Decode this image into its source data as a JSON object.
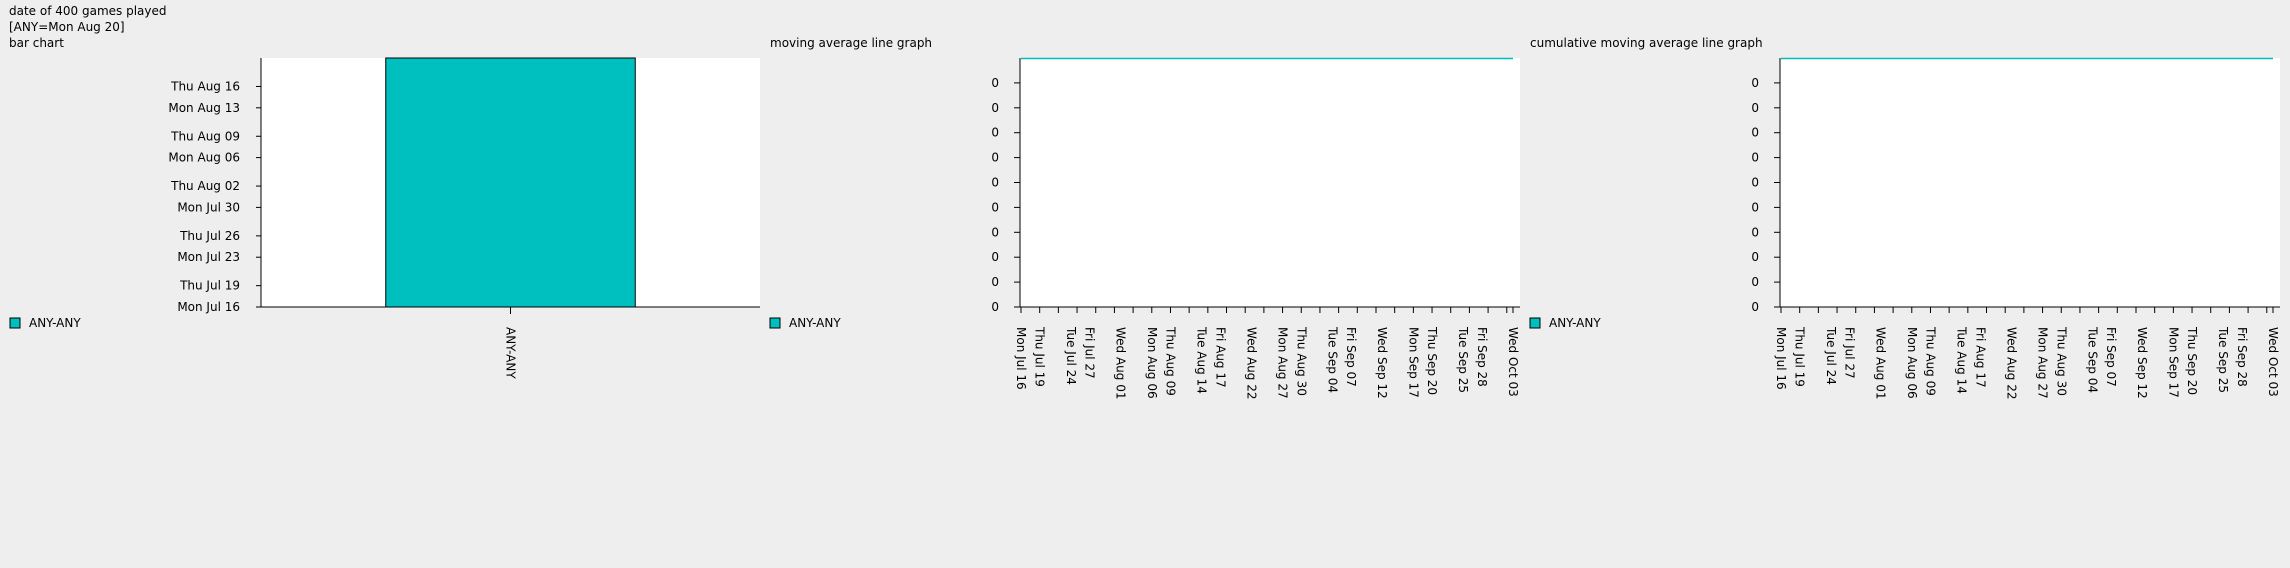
{
  "header": {
    "line1": "date of 400 games played",
    "line2": "[ANY=Mon Aug 20]",
    "line3": "bar chart"
  },
  "colors": {
    "series": "#00bfbf",
    "background": "#eeeeee",
    "plot_area": "#ffffff"
  },
  "chart_data": [
    {
      "type": "bar",
      "title": "bar chart",
      "categories": [
        "ANY-ANY"
      ],
      "series": [
        {
          "name": "ANY-ANY",
          "values": [
            "Mon Aug 20"
          ]
        }
      ],
      "y_ticks": [
        "Mon Jul 16",
        "Thu Jul 19",
        "Mon Jul 23",
        "Thu Jul 26",
        "Mon Jul 30",
        "Thu Aug 02",
        "Mon Aug 06",
        "Thu Aug 09",
        "Mon Aug 13",
        "Thu Aug 16"
      ],
      "ylim": [
        "Mon Jul 16",
        "Mon Aug 20"
      ],
      "legend": "left",
      "grid": false
    },
    {
      "type": "line",
      "title": "moving average line graph",
      "x_ticks": [
        "Mon Jul 16",
        "Thu Jul 19",
        "Tue Jul 24",
        "Fri Jul 27",
        "Wed Aug 01",
        "Mon Aug 06",
        "Thu Aug 09",
        "Tue Aug 14",
        "Fri Aug 17",
        "Wed Aug 22",
        "Mon Aug 27",
        "Thu Aug 30",
        "Tue Sep 04",
        "Fri Sep 07",
        "Wed Sep 12",
        "Mon Sep 17",
        "Thu Sep 20",
        "Tue Sep 25",
        "Fri Sep 28",
        "Wed Oct 03"
      ],
      "y_ticks": [
        "0",
        "0",
        "0",
        "0",
        "0",
        "0",
        "0",
        "0",
        "0",
        "0"
      ],
      "series": [
        {
          "name": "ANY-ANY",
          "x": [
            "Mon Jul 16",
            "Wed Oct 03"
          ],
          "y": [
            0,
            0
          ]
        }
      ],
      "legend": "left",
      "grid": false
    },
    {
      "type": "line",
      "title": "cumulative moving average line graph",
      "x_ticks": [
        "Mon Jul 16",
        "Thu Jul 19",
        "Tue Jul 24",
        "Fri Jul 27",
        "Wed Aug 01",
        "Mon Aug 06",
        "Thu Aug 09",
        "Tue Aug 14",
        "Fri Aug 17",
        "Wed Aug 22",
        "Mon Aug 27",
        "Thu Aug 30",
        "Tue Sep 04",
        "Fri Sep 07",
        "Wed Sep 12",
        "Mon Sep 17",
        "Thu Sep 20",
        "Tue Sep 25",
        "Fri Sep 28",
        "Wed Oct 03"
      ],
      "y_ticks": [
        "0",
        "0",
        "0",
        "0",
        "0",
        "0",
        "0",
        "0",
        "0",
        "0"
      ],
      "series": [
        {
          "name": "ANY-ANY",
          "x": [
            "Mon Jul 16",
            "Wed Oct 03"
          ],
          "y": [
            0,
            0
          ]
        }
      ],
      "legend": "left",
      "grid": false
    }
  ]
}
